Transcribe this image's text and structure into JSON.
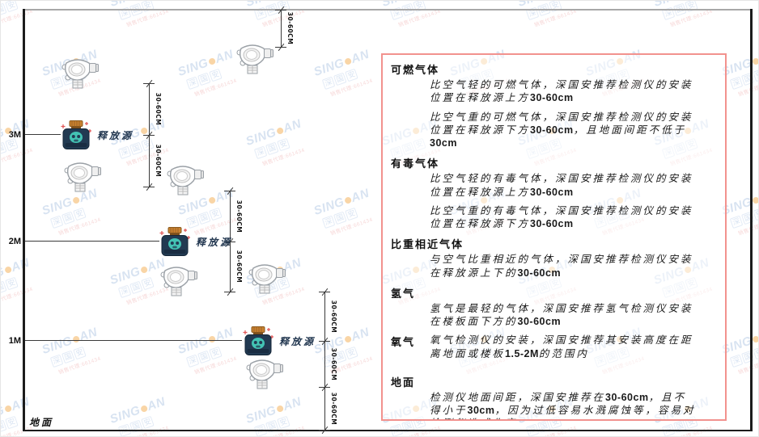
{
  "diagram": {
    "axis_labels": {
      "m3": "3M",
      "m2": "2M",
      "m1": "1M"
    },
    "ground_label": "地面",
    "release_source_label": "释放源",
    "dimension_label": "30-60CM"
  },
  "panel": {
    "border_color": "#f2928e",
    "sections": [
      {
        "heading": "可燃气体",
        "paragraphs": [
          "比空气轻的可燃气体，深国安推荐检测仪的安装位置在释放源上方30-60cm",
          "比空气重的可燃气体，深国安推荐检测仪的安装位置在释放源下方30-60cm，且地面间距不低于30cm"
        ]
      },
      {
        "heading": "有毒气体",
        "paragraphs": [
          "比空气轻的有毒气体，深国安推荐检测仪的安装位置在释放源上方30-60cm",
          "比空气重的有毒气体，深国安推荐检测仪的安装位置在释放源下方30-60cm"
        ]
      },
      {
        "heading": "比重相近气体",
        "paragraphs": [
          "与空气比重相近的气体，深国安推荐检测仪安装在释放源上下的30-60cm"
        ]
      },
      {
        "heading": "氢气",
        "paragraphs": [
          "氢气是最轻的气体，深国安推荐氢气检测仪安装在楼板面下方的30-60cm"
        ]
      },
      {
        "heading": "氧气",
        "inline": true,
        "paragraphs": [
          "氧气检测仪的安装，深国安推荐其安装高度在距离地面或楼板1.5-2M的范围内"
        ]
      },
      {
        "heading": "地面",
        "paragraphs": [
          "检测仪地面间距，深国安推荐在30-60cm，且不得小于30cm，因为过低容易水溅腐蚀等，容易对检测仪造成伤害"
        ]
      }
    ]
  },
  "watermark": {
    "brand_left": "SING",
    "brand_right": "AN",
    "brand_chars": [
      "深",
      "国",
      "安"
    ],
    "agent_line": "销售代理:661434"
  },
  "colors": {
    "wall": "#1c1c1c",
    "ceiling": "#a8a8a8",
    "panel_border": "#f2928e",
    "detector_outline": "#9aa0a6",
    "release_source_body": "#223a52",
    "release_source_cap": "#c9812f",
    "release_source_face": "#43c3b4",
    "sparkle": "#e05555",
    "watermark_blue": "#a9c2e2",
    "watermark_dot": "#f2a33c",
    "watermark_red": "#eda9a9"
  }
}
